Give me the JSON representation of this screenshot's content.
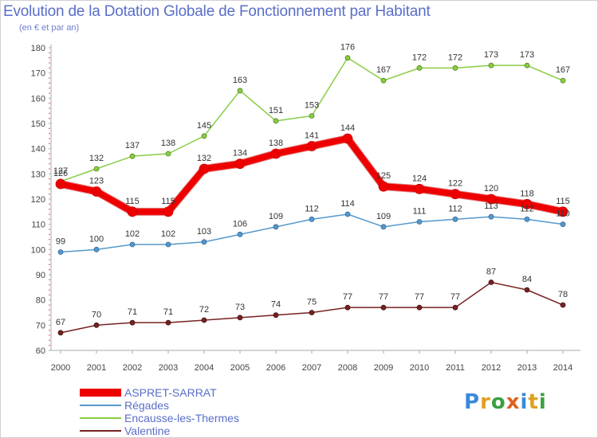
{
  "header": {
    "title": "Evolution de la Dotation Globale de Fonctionnement par Habitant",
    "subtitle": "(en € et par an)"
  },
  "logo": {
    "text": "Proxiti",
    "letter_colors": [
      "#3a8ad8",
      "#e0a020",
      "#3aa040",
      "#e06020",
      "#3a8ad8",
      "#e0a020",
      "#3aa040"
    ]
  },
  "chart_data": {
    "type": "line",
    "x": [
      "2000",
      "2001",
      "2002",
      "2003",
      "2004",
      "2005",
      "2006",
      "2007",
      "2008",
      "2009",
      "2010",
      "2011",
      "2012",
      "2013",
      "2014"
    ],
    "ylim": [
      60,
      180
    ],
    "yticks": [
      60,
      70,
      80,
      90,
      100,
      110,
      120,
      130,
      140,
      150,
      160,
      170,
      180
    ],
    "grid": false,
    "legend": "bottom-left",
    "series": [
      {
        "name": "ASPRET-SARRAT",
        "color": "#ee0000",
        "values": [
          126,
          123,
          115,
          115,
          132,
          134,
          138,
          141,
          144,
          125,
          124,
          122,
          120,
          118,
          115
        ]
      },
      {
        "name": "Régades",
        "color": "#5599cc",
        "values": [
          99,
          100,
          102,
          102,
          103,
          106,
          109,
          112,
          114,
          109,
          111,
          112,
          113,
          112,
          110
        ]
      },
      {
        "name": "Encausse-les-Thermes",
        "color": "#88cc44",
        "values": [
          127,
          132,
          137,
          138,
          145,
          163,
          151,
          153,
          176,
          167,
          172,
          172,
          173,
          173,
          167
        ]
      },
      {
        "name": "Valentine",
        "color": "#772222",
        "values": [
          67,
          70,
          71,
          71,
          72,
          73,
          74,
          75,
          77,
          77,
          77,
          77,
          87,
          84,
          78
        ]
      }
    ],
    "value_labels": [
      [
        126,
        123,
        115,
        115,
        132,
        134,
        138,
        141,
        144,
        125,
        124,
        122,
        120,
        118,
        115
      ],
      [
        99,
        100,
        102,
        102,
        103,
        106,
        109,
        112,
        114,
        109,
        111,
        112,
        113,
        112,
        110
      ],
      [
        127,
        132,
        137,
        138,
        145,
        163,
        151,
        153,
        176,
        167,
        172,
        172,
        173,
        173,
        167
      ],
      [
        67,
        70,
        71,
        71,
        72,
        73,
        74,
        75,
        77,
        77,
        77,
        77,
        87,
        84,
        78
      ]
    ]
  }
}
